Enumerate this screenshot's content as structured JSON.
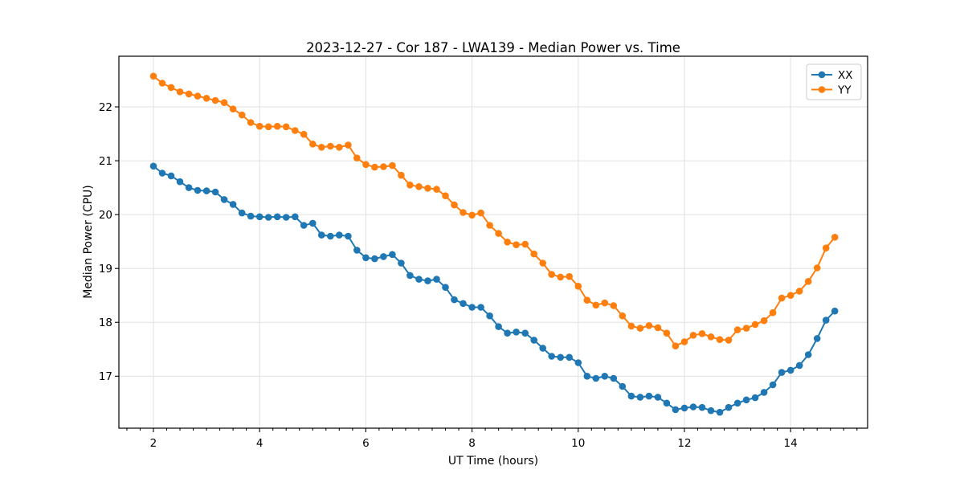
{
  "chart_data": {
    "type": "line",
    "title": "2023-12-27 - Cor 187 - LWA139 - Median Power vs. Time",
    "xlabel": "UT Time (hours)",
    "ylabel": "Median Power (CPU)",
    "xlim": [
      1.35,
      15.45
    ],
    "ylim": [
      16.035,
      22.94
    ],
    "x_ticks": [
      2,
      4,
      6,
      8,
      10,
      12,
      14
    ],
    "x_minor_tick_step": 0.25,
    "y_ticks": [
      17,
      18,
      19,
      20,
      21,
      22
    ],
    "grid": true,
    "legend_position": "upper right",
    "background": "#ffffff",
    "x": [
      2.0,
      2.167,
      2.333,
      2.5,
      2.667,
      2.833,
      3.0,
      3.167,
      3.333,
      3.5,
      3.667,
      3.833,
      4.0,
      4.167,
      4.333,
      4.5,
      4.667,
      4.833,
      5.0,
      5.167,
      5.333,
      5.5,
      5.667,
      5.833,
      6.0,
      6.167,
      6.333,
      6.5,
      6.667,
      6.833,
      7.0,
      7.167,
      7.333,
      7.5,
      7.667,
      7.833,
      8.0,
      8.167,
      8.333,
      8.5,
      8.667,
      8.833,
      9.0,
      9.167,
      9.333,
      9.5,
      9.667,
      9.833,
      10.0,
      10.167,
      10.333,
      10.5,
      10.667,
      10.833,
      11.0,
      11.167,
      11.333,
      11.5,
      11.667,
      11.833,
      12.0,
      12.167,
      12.333,
      12.5,
      12.667,
      12.833,
      13.0,
      13.167,
      13.333,
      13.5,
      13.667,
      13.833,
      14.0,
      14.167,
      14.333,
      14.5,
      14.667,
      14.833
    ],
    "series": [
      {
        "name": "XX",
        "color": "#1f77b4",
        "marker": "circle",
        "values": [
          20.9,
          20.77,
          20.72,
          20.61,
          20.5,
          20.45,
          20.44,
          20.42,
          20.28,
          20.19,
          20.03,
          19.97,
          19.96,
          19.95,
          19.96,
          19.95,
          19.96,
          19.8,
          19.84,
          19.62,
          19.6,
          19.62,
          19.6,
          19.34,
          19.2,
          19.18,
          19.22,
          19.26,
          19.1,
          18.87,
          18.8,
          18.77,
          18.8,
          18.65,
          18.42,
          18.35,
          18.28,
          18.28,
          18.12,
          17.92,
          17.8,
          17.82,
          17.8,
          17.67,
          17.52,
          17.37,
          17.35,
          17.35,
          17.25,
          17.0,
          16.96,
          17.0,
          16.96,
          16.81,
          16.63,
          16.61,
          16.63,
          16.61,
          16.5,
          16.38,
          16.41,
          16.43,
          16.42,
          16.36,
          16.33,
          16.42,
          16.5,
          16.56,
          16.6,
          16.7,
          16.84,
          17.07,
          17.11,
          17.2,
          17.4,
          17.7,
          18.04,
          18.21
        ]
      },
      {
        "name": "YY",
        "color": "#ff7f0e",
        "marker": "circle",
        "values": [
          22.57,
          22.44,
          22.36,
          22.28,
          22.24,
          22.2,
          22.16,
          22.12,
          22.08,
          21.96,
          21.85,
          21.71,
          21.64,
          21.63,
          21.64,
          21.63,
          21.56,
          21.49,
          21.31,
          21.25,
          21.27,
          21.25,
          21.29,
          21.05,
          20.93,
          20.88,
          20.89,
          20.91,
          20.73,
          20.55,
          20.52,
          20.49,
          20.47,
          20.35,
          20.18,
          20.04,
          19.99,
          20.03,
          19.8,
          19.65,
          19.49,
          19.44,
          19.45,
          19.27,
          19.1,
          18.89,
          18.84,
          18.85,
          18.67,
          18.41,
          18.32,
          18.36,
          18.31,
          18.12,
          17.93,
          17.89,
          17.94,
          17.9,
          17.8,
          17.56,
          17.64,
          17.76,
          17.79,
          17.73,
          17.68,
          17.67,
          17.86,
          17.89,
          17.96,
          18.03,
          18.18,
          18.45,
          18.5,
          18.58,
          18.76,
          19.01,
          19.38,
          19.58
        ]
      }
    ]
  }
}
